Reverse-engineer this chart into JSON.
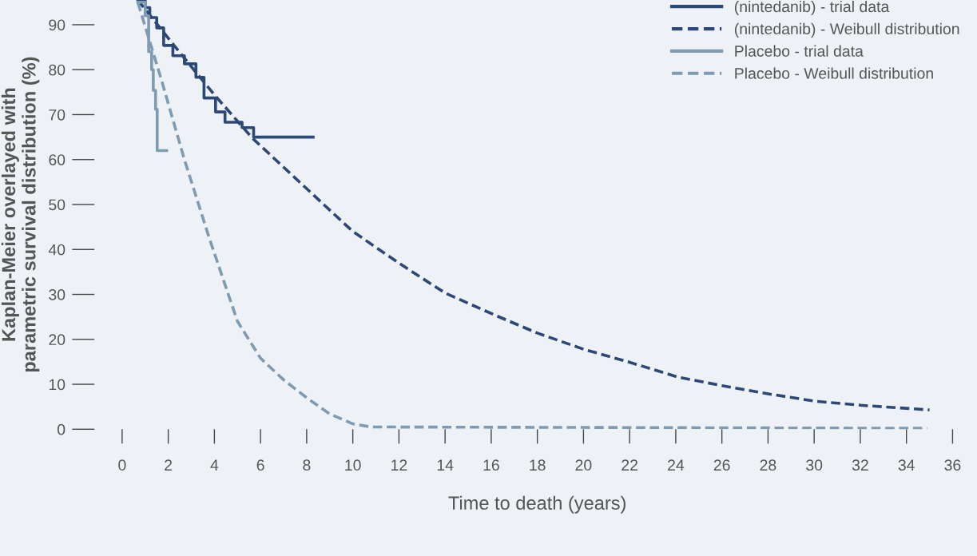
{
  "chart_data": {
    "type": "line",
    "xlabel": "Time to death (years)",
    "ylabel": "Kaplan-Meier overlayed with\nparametric survival distribution (%)",
    "xlim": [
      0,
      36
    ],
    "ylim": [
      0,
      95.5
    ],
    "xticks": [
      0,
      2,
      4,
      6,
      8,
      10,
      12,
      14,
      16,
      18,
      20,
      22,
      24,
      26,
      28,
      30,
      32,
      34,
      36
    ],
    "yticks": [
      0,
      10,
      20,
      30,
      40,
      50,
      60,
      70,
      80,
      90
    ],
    "grid": false,
    "legend": "top right",
    "marker": "none",
    "series": [
      {
        "name": "(nintedanib) - trial data",
        "type": "step",
        "line_style": "solid",
        "color": "#2c4877",
        "x": [
          0.68,
          1.0,
          1.2,
          1.5,
          1.8,
          2.2,
          2.7,
          3.2,
          3.55,
          4.05,
          4.46,
          5.2,
          5.7,
          8.28
        ],
        "values": [
          95.5,
          93.8,
          91.6,
          89.3,
          85.4,
          83.1,
          81.3,
          78.3,
          73.7,
          70.6,
          68.3,
          67.1,
          65,
          65
        ]
      },
      {
        "name": "(nintedanib) - Weibull distribution",
        "line_style": "dashed",
        "color": "#2c4877",
        "x": [
          0.68,
          2.25,
          3.95,
          5.64,
          7.9,
          10.0,
          12.05,
          14,
          16.2,
          18,
          20,
          22,
          24.1,
          26.1,
          28.1,
          30.1,
          32.1,
          35.0
        ],
        "values": [
          95.5,
          85.4,
          74.7,
          64.8,
          54,
          44,
          36.8,
          30.3,
          25.3,
          21.4,
          17.8,
          14.9,
          11.6,
          9.6,
          7.8,
          6.2,
          5.3,
          4.3
        ]
      },
      {
        "name": "Placebo - trial data",
        "type": "step",
        "line_style": "solid",
        "color": "#7f9bb1",
        "x": [
          0.68,
          1.0,
          1.15,
          1.28,
          1.35,
          1.45,
          1.52,
          1.93
        ],
        "values": [
          95,
          92,
          84,
          80,
          75.4,
          71.2,
          62,
          62
        ]
      },
      {
        "name": "Placebo - Weibull distribution",
        "line_style": "dashed",
        "color": "#7f9bb1",
        "x": [
          0.68,
          1.7,
          2.7,
          3.78,
          5,
          6,
          7,
          8,
          9,
          10,
          10.8,
          20,
          34.9
        ],
        "values": [
          95,
          77.8,
          60,
          42.5,
          24,
          15.8,
          11,
          7,
          3.4,
          1.2,
          0.5,
          0.4,
          0.2
        ]
      }
    ]
  }
}
